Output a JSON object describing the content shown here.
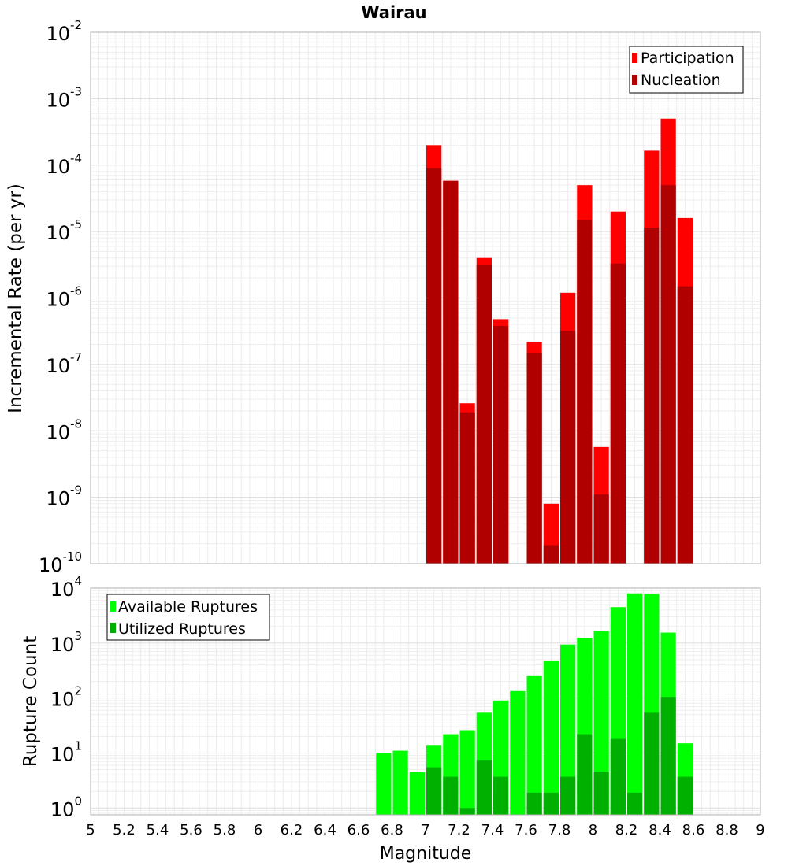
{
  "chart_data": [
    {
      "type": "bar",
      "title": "Wairau",
      "ylabel": "Incremental Rate (per yr)",
      "xlabel": "",
      "y_scale": "log",
      "ylim": [
        1e-10,
        0.01
      ],
      "xlim": [
        5,
        9
      ],
      "y_tick_labels": [
        {
          "base": "10",
          "exp": "-10"
        },
        {
          "base": "10",
          "exp": "-9"
        },
        {
          "base": "10",
          "exp": "-8"
        },
        {
          "base": "10",
          "exp": "-7"
        },
        {
          "base": "10",
          "exp": "-6"
        },
        {
          "base": "10",
          "exp": "-5"
        },
        {
          "base": "10",
          "exp": "-4"
        },
        {
          "base": "10",
          "exp": "-3"
        },
        {
          "base": "10",
          "exp": "-2"
        }
      ],
      "grid": true,
      "legend": {
        "placement": "top-right",
        "entries": [
          "Participation",
          "Nucleation"
        ]
      },
      "colors": {
        "Participation": "#ff0000",
        "Nucleation": "#b00000"
      },
      "x": [
        7.05,
        7.15,
        7.25,
        7.35,
        7.45,
        7.55,
        7.65,
        7.75,
        7.85,
        7.95,
        8.05,
        8.15,
        8.25,
        8.35,
        8.45,
        8.55
      ],
      "series": [
        {
          "name": "Participation",
          "values": [
            0.0002,
            5.8e-05,
            2.6e-08,
            4e-06,
            4.8e-07,
            null,
            2.2e-07,
            8e-10,
            1.2e-06,
            5e-05,
            5.7e-09,
            2e-05,
            null,
            0.000165,
            0.0005,
            1.6e-05
          ]
        },
        {
          "name": "Nucleation",
          "values": [
            9e-05,
            5.8e-05,
            1.9e-08,
            3.2e-06,
            3.8e-07,
            null,
            1.5e-07,
            1.9e-10,
            3.2e-07,
            1.5e-05,
            1.1e-09,
            3.3e-06,
            null,
            1.15e-05,
            5e-05,
            1.5e-06
          ]
        }
      ]
    },
    {
      "type": "bar",
      "title": "",
      "ylabel": "Rupture Count",
      "xlabel": "Magnitude",
      "y_scale": "log",
      "ylim": [
        0.75,
        10000
      ],
      "xlim": [
        5,
        9
      ],
      "y_tick_labels": [
        {
          "base": "10",
          "exp": "0"
        },
        {
          "base": "10",
          "exp": "1"
        },
        {
          "base": "10",
          "exp": "2"
        },
        {
          "base": "10",
          "exp": "3"
        },
        {
          "base": "10",
          "exp": "4"
        }
      ],
      "x_tick_labels": [
        "5",
        "5.2",
        "5.4",
        "5.6",
        "5.8",
        "6",
        "6.2",
        "6.4",
        "6.6",
        "6.8",
        "7",
        "7.2",
        "7.4",
        "7.6",
        "7.8",
        "8",
        "8.2",
        "8.4",
        "8.6",
        "8.8",
        "9"
      ],
      "grid": true,
      "legend": {
        "placement": "top-left",
        "entries": [
          "Available Ruptures",
          "Utilized Ruptures"
        ]
      },
      "colors": {
        "Available Ruptures": "#00ff00",
        "Utilized Ruptures": "#00b000"
      },
      "x": [
        6.75,
        6.85,
        6.95,
        7.05,
        7.15,
        7.25,
        7.35,
        7.45,
        7.55,
        7.65,
        7.75,
        7.85,
        7.95,
        8.05,
        8.15,
        8.25,
        8.35,
        8.45,
        8.55
      ],
      "series": [
        {
          "name": "Available Ruptures",
          "values": [
            10,
            11,
            4.5,
            14,
            22,
            26,
            54,
            90,
            134,
            250,
            470,
            940,
            1250,
            1650,
            4500,
            8000,
            7800,
            1550,
            15
          ]
        },
        {
          "name": "Utilized Ruptures",
          "values": [
            null,
            null,
            null,
            5.5,
            3.7,
            1,
            7.5,
            3.7,
            null,
            1.9,
            1.9,
            3.7,
            22,
            4.6,
            18,
            1.9,
            54,
            105,
            3.7
          ]
        }
      ]
    }
  ]
}
